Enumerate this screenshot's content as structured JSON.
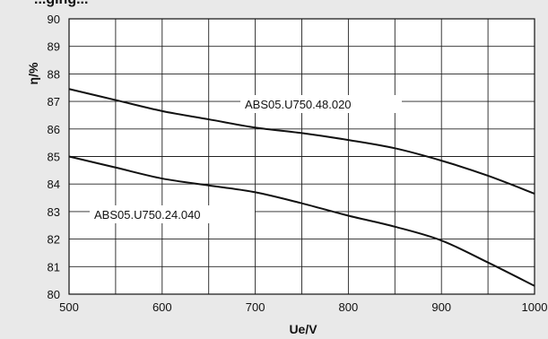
{
  "header": {
    "partial_title": "...ging..."
  },
  "chart_data": {
    "type": "line",
    "xlabel": "Ue/V",
    "ylabel": "η/%",
    "xlim": [
      500,
      1000
    ],
    "ylim": [
      80,
      90
    ],
    "xticks": [
      500,
      600,
      700,
      800,
      900,
      1000
    ],
    "yticks": [
      80,
      81,
      82,
      83,
      84,
      85,
      86,
      87,
      88,
      89,
      90
    ],
    "x_minor_step": 50,
    "grid": true,
    "series": [
      {
        "name": "ABS05.U750.48.020",
        "x": [
          500,
          550,
          600,
          650,
          700,
          750,
          800,
          850,
          900,
          950,
          1000
        ],
        "y": [
          87.45,
          87.05,
          86.65,
          86.35,
          86.05,
          85.85,
          85.6,
          85.3,
          84.85,
          84.3,
          83.65
        ]
      },
      {
        "name": "ABS05.U750.24.040",
        "x": [
          500,
          550,
          600,
          650,
          700,
          750,
          800,
          850,
          900,
          950,
          1000
        ],
        "y": [
          85.0,
          84.6,
          84.2,
          83.95,
          83.7,
          83.3,
          82.85,
          82.45,
          81.95,
          81.15,
          80.3
        ]
      }
    ]
  }
}
